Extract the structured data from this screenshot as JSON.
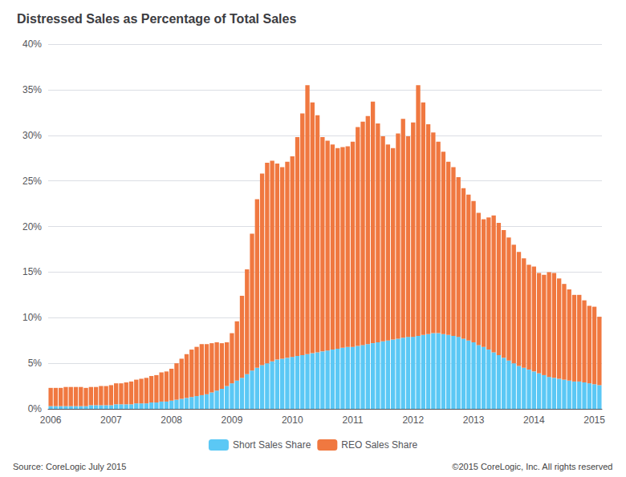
{
  "chart_data": {
    "type": "bar",
    "stacked": true,
    "title": "Distressed Sales as Percentage of Total Sales",
    "categories": [
      "2006",
      null,
      null,
      null,
      null,
      null,
      null,
      null,
      null,
      null,
      null,
      null,
      "2007",
      null,
      null,
      null,
      null,
      null,
      null,
      null,
      null,
      null,
      null,
      null,
      "2008",
      null,
      null,
      null,
      null,
      null,
      null,
      null,
      null,
      null,
      null,
      null,
      "2009",
      null,
      null,
      null,
      null,
      null,
      null,
      null,
      null,
      null,
      null,
      null,
      "2010",
      null,
      null,
      null,
      null,
      null,
      null,
      null,
      null,
      null,
      null,
      null,
      "2011",
      null,
      null,
      null,
      null,
      null,
      null,
      null,
      null,
      null,
      null,
      null,
      "2012",
      null,
      null,
      null,
      null,
      null,
      null,
      null,
      null,
      null,
      null,
      null,
      "2013",
      null,
      null,
      null,
      null,
      null,
      null,
      null,
      null,
      null,
      null,
      null,
      "2014",
      null,
      null,
      null,
      null,
      null,
      null,
      null,
      null,
      null,
      null,
      null,
      "2015",
      null
    ],
    "series": [
      {
        "name": "Short Sales Share",
        "color": "#5BC8F5",
        "values": [
          0.3,
          0.3,
          0.3,
          0.3,
          0.3,
          0.3,
          0.3,
          0.3,
          0.4,
          0.4,
          0.4,
          0.4,
          0.4,
          0.5,
          0.5,
          0.5,
          0.5,
          0.6,
          0.6,
          0.6,
          0.7,
          0.7,
          0.8,
          0.8,
          0.9,
          1.0,
          1.1,
          1.2,
          1.3,
          1.4,
          1.5,
          1.6,
          1.8,
          2.0,
          2.2,
          2.5,
          2.8,
          3.1,
          3.4,
          3.8,
          4.2,
          4.5,
          4.8,
          5.0,
          5.2,
          5.4,
          5.5,
          5.6,
          5.7,
          5.8,
          5.9,
          6.0,
          6.1,
          6.2,
          6.3,
          6.4,
          6.5,
          6.6,
          6.7,
          6.8,
          6.8,
          6.9,
          7.0,
          7.1,
          7.2,
          7.3,
          7.4,
          7.5,
          7.6,
          7.7,
          7.8,
          7.9,
          7.9,
          8.0,
          8.1,
          8.2,
          8.3,
          8.3,
          8.2,
          8.1,
          8.0,
          7.9,
          7.7,
          7.5,
          7.3,
          7.0,
          6.8,
          6.5,
          6.2,
          5.9,
          5.6,
          5.3,
          5.0,
          4.7,
          4.5,
          4.3,
          4.1,
          3.9,
          3.7,
          3.5,
          3.4,
          3.3,
          3.2,
          3.1,
          3.0,
          3.0,
          2.9,
          2.8,
          2.7,
          2.6
        ]
      },
      {
        "name": "REO Sales Share",
        "color": "#F07840",
        "values": [
          2.0,
          2.0,
          2.0,
          2.1,
          2.1,
          2.1,
          2.1,
          2.0,
          2.0,
          2.0,
          2.1,
          2.1,
          2.2,
          2.3,
          2.3,
          2.4,
          2.5,
          2.6,
          2.7,
          2.8,
          2.9,
          3.0,
          3.2,
          3.3,
          3.5,
          4.0,
          4.4,
          4.8,
          5.2,
          5.4,
          5.6,
          5.5,
          5.4,
          5.3,
          5.0,
          4.8,
          5.5,
          6.5,
          9.0,
          11.5,
          15.0,
          18.5,
          21.0,
          22.0,
          22.0,
          21.5,
          21.0,
          21.5,
          22.0,
          24.0,
          26.5,
          29.5,
          27.5,
          26.0,
          23.5,
          23.0,
          22.5,
          22.0,
          22.0,
          22.0,
          22.5,
          24.0,
          24.5,
          25.0,
          26.5,
          24.0,
          22.5,
          21.5,
          21.0,
          22.5,
          24.0,
          22.0,
          23.5,
          27.5,
          25.5,
          23.0,
          22.0,
          21.0,
          20.0,
          19.0,
          18.5,
          17.5,
          16.5,
          16.0,
          15.5,
          14.5,
          14.0,
          14.5,
          15.0,
          14.5,
          14.0,
          13.5,
          13.0,
          12.5,
          12.0,
          11.5,
          11.5,
          11.0,
          11.0,
          11.5,
          11.5,
          11.0,
          10.5,
          10.0,
          9.5,
          9.5,
          9.0,
          8.5,
          8.5,
          7.5
        ]
      }
    ],
    "ylim": [
      0,
      40
    ],
    "yticks": [
      {
        "value": 0,
        "label": "0%"
      },
      {
        "value": 5,
        "label": "5%"
      },
      {
        "value": 10,
        "label": "10%"
      },
      {
        "value": 15,
        "label": "15%"
      },
      {
        "value": 20,
        "label": "20%"
      },
      {
        "value": 25,
        "label": "25%"
      },
      {
        "value": 30,
        "label": "30%"
      },
      {
        "value": 35,
        "label": "35%"
      },
      {
        "value": 40,
        "label": "40%"
      }
    ],
    "grid": true,
    "legend": "bottom",
    "annotations": [
      "Source: CoreLogic July 2015",
      "©2015 CoreLogic, Inc. All rights reserved"
    ]
  }
}
